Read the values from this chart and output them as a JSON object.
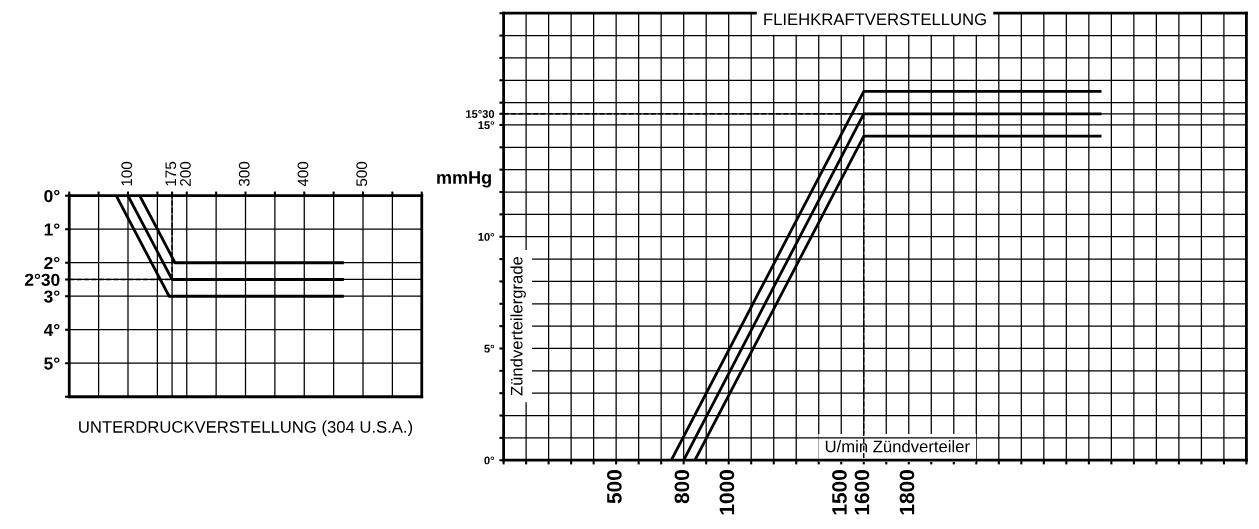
{
  "chart_data": [
    {
      "type": "line",
      "title": "UNTERDRUCKVERSTELLUNG (304 U.S.A.)",
      "xlabel": "mmHg",
      "series": [
        {
          "color": "#000000",
          "x": [
            80,
            170,
            465
          ],
          "values": [
            0,
            3,
            3
          ]
        },
        {
          "color": "#000000",
          "x": [
            100,
            175,
            465
          ],
          "values": [
            0,
            2.5,
            2.5
          ]
        },
        {
          "color": "#000000",
          "x": [
            120,
            180,
            465
          ],
          "values": [
            0,
            2,
            2
          ]
        },
        {
          "color": "#000000",
          "x": [
            0,
            175,
            175
          ],
          "values": [
            2.5,
            2.5,
            0
          ],
          "line_style": "dashed"
        }
      ],
      "xlim": [
        0,
        600
      ],
      "ylim": [
        6,
        0
      ],
      "xticks": [
        {
          "value": 0,
          "label": null
        },
        {
          "value": 50,
          "label": null
        },
        100,
        {
          "value": 150,
          "label": null
        },
        175,
        200,
        {
          "value": 250,
          "label": null
        },
        300,
        {
          "value": 350,
          "label": null
        },
        400,
        {
          "value": 450,
          "label": null
        },
        500,
        {
          "value": 550,
          "label": null
        },
        {
          "value": 600,
          "label": null
        }
      ],
      "yticks": [
        {
          "value": 0,
          "label": "0°"
        },
        {
          "value": 1,
          "label": "1°"
        },
        {
          "value": 2,
          "label": "2°"
        },
        {
          "value": 2.5,
          "label": "2°30"
        },
        {
          "value": 3,
          "label": "3°"
        },
        {
          "value": 4,
          "label": "4°"
        },
        {
          "value": 5,
          "label": "5°"
        },
        {
          "value": 6,
          "label": null
        }
      ],
      "grid": true,
      "legend": false,
      "marker": "none",
      "line_style": "solid"
    },
    {
      "type": "line",
      "title": "FLIEHKRAFTVERSTELLUNG",
      "xlabel": "U/min Zündverteiler",
      "ylabel": "Zündverteilergrade",
      "series": [
        {
          "color": "#000000",
          "x": [
            745,
            1600,
            2650
          ],
          "values": [
            0,
            16.5,
            16.5
          ]
        },
        {
          "color": "#000000",
          "x": [
            800,
            1600,
            2650
          ],
          "values": [
            0,
            15.5,
            15.5
          ]
        },
        {
          "color": "#000000",
          "x": [
            850,
            1600,
            2650
          ],
          "values": [
            0,
            14.5,
            14.5
          ]
        },
        {
          "color": "#000000",
          "x": [
            0,
            1600,
            1600
          ],
          "values": [
            15.5,
            15.5,
            0
          ],
          "line_style": "dashed"
        }
      ],
      "xlim": [
        0,
        3300
      ],
      "ylim": [
        0,
        20
      ],
      "xticks": [
        {
          "value": 0,
          "label": null
        },
        {
          "value": 100,
          "label": null
        },
        {
          "value": 200,
          "label": null
        },
        {
          "value": 300,
          "label": null
        },
        {
          "value": 400,
          "label": null
        },
        500,
        {
          "value": 600,
          "label": null
        },
        {
          "value": 700,
          "label": null
        },
        800,
        {
          "value": 900,
          "label": null
        },
        1000,
        {
          "value": 1100,
          "label": null
        },
        {
          "value": 1200,
          "label": null
        },
        {
          "value": 1300,
          "label": null
        },
        {
          "value": 1400,
          "label": null
        },
        1500,
        1600,
        {
          "value": 1700,
          "label": null
        },
        1800,
        {
          "value": 1900,
          "label": null
        },
        {
          "value": 2000,
          "label": null
        },
        {
          "value": 2100,
          "label": null
        },
        {
          "value": 2200,
          "label": null
        },
        {
          "value": 2300,
          "label": null
        },
        {
          "value": 2400,
          "label": null
        },
        {
          "value": 2500,
          "label": null
        },
        {
          "value": 2600,
          "label": null
        },
        {
          "value": 2700,
          "label": null
        },
        {
          "value": 2800,
          "label": null
        },
        {
          "value": 2900,
          "label": null
        },
        {
          "value": 3000,
          "label": null
        },
        {
          "value": 3100,
          "label": null
        },
        {
          "value": 3200,
          "label": null
        },
        {
          "value": 3300,
          "label": null
        }
      ],
      "yticks": [
        {
          "value": 0,
          "label": "0°"
        },
        {
          "value": 1,
          "label": null
        },
        {
          "value": 2,
          "label": null
        },
        {
          "value": 3,
          "label": null
        },
        {
          "value": 4,
          "label": null
        },
        {
          "value": 5,
          "label": "5°"
        },
        {
          "value": 6,
          "label": null
        },
        {
          "value": 7,
          "label": null
        },
        {
          "value": 8,
          "label": null
        },
        {
          "value": 9,
          "label": null
        },
        {
          "value": 10,
          "label": "10°"
        },
        {
          "value": 11,
          "label": null
        },
        {
          "value": 12,
          "label": null
        },
        {
          "value": 13,
          "label": null
        },
        {
          "value": 14,
          "label": null
        },
        {
          "value": 15,
          "label": "15°"
        },
        {
          "value": 15.5,
          "label": "15°30"
        },
        {
          "value": 16,
          "label": null
        },
        {
          "value": 17,
          "label": null
        },
        {
          "value": 18,
          "label": null
        },
        {
          "value": 19,
          "label": null
        },
        {
          "value": 20,
          "label": null
        }
      ],
      "grid": true,
      "legend": false,
      "marker": "none",
      "line_style": "solid"
    }
  ]
}
